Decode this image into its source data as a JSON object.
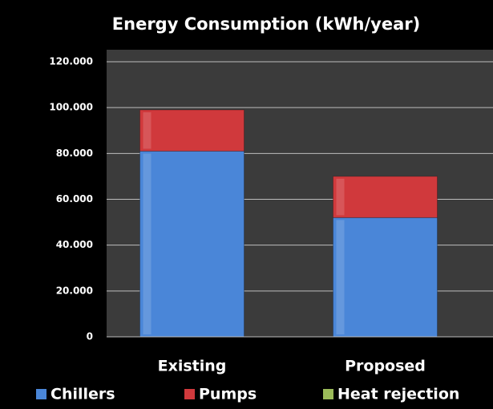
{
  "chart_data": {
    "type": "stacked_bar",
    "title": "Energy Consumption (kWh/year)",
    "categories": [
      "Existing",
      "Proposed"
    ],
    "series": [
      {
        "name": "Chillers",
        "color": "#4a86d8",
        "values": [
          81000,
          52000
        ]
      },
      {
        "name": "Pumps",
        "color": "#d0393c",
        "values": [
          18000,
          18000
        ]
      },
      {
        "name": "Heat rejection",
        "color": "#9bbb59",
        "values": [
          0,
          0
        ]
      }
    ],
    "ylim": [
      0,
      120000
    ],
    "yticks": [
      0,
      {
        "value": 20000,
        "label": "20.000"
      },
      {
        "value": 40000,
        "label": "40.000"
      },
      {
        "value": 60000,
        "label": "60.000"
      },
      {
        "value": 80000,
        "label": "80.000"
      },
      {
        "value": 100000,
        "label": "100.000"
      },
      {
        "value": 120000,
        "label": "120.000"
      }
    ],
    "grid": true,
    "legend": "bottom"
  }
}
